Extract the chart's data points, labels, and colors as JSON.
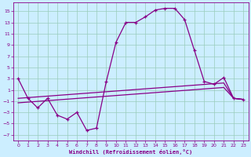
{
  "background_color": "#cceeff",
  "grid_color": "#99ccbb",
  "line_color": "#880088",
  "xlabel": "Windchill (Refroidissement éolien,°C)",
  "xlim": [
    -0.5,
    23.5
  ],
  "ylim": [
    -8.0,
    16.5
  ],
  "yticks": [
    -7,
    -5,
    -3,
    -1,
    1,
    3,
    5,
    7,
    9,
    11,
    13,
    15
  ],
  "xticks": [
    0,
    1,
    2,
    3,
    4,
    5,
    6,
    7,
    8,
    9,
    10,
    11,
    12,
    13,
    14,
    15,
    16,
    17,
    18,
    19,
    20,
    21,
    22,
    23
  ],
  "curve_x": [
    0,
    1,
    2,
    3,
    4,
    5,
    6,
    7,
    8,
    9,
    10,
    11,
    12,
    13,
    14,
    15,
    16,
    17,
    18,
    19,
    20,
    21,
    22,
    23
  ],
  "curve_y": [
    3,
    -0.5,
    -2.2,
    -0.5,
    -3.5,
    -4.2,
    -3.0,
    -6.2,
    -5.8,
    2.5,
    9.5,
    13,
    13,
    14,
    15.2,
    15.5,
    15.5,
    13.5,
    8.0,
    2.5,
    2.0,
    3.2,
    -0.5,
    -0.7
  ],
  "diag1_x": [
    0,
    1,
    2,
    3,
    4,
    5,
    6,
    7,
    8,
    9,
    10,
    11,
    12,
    13,
    14,
    15,
    16,
    17,
    18,
    19,
    20,
    21,
    22,
    23
  ],
  "diag1_y": [
    -0.5,
    -0.37,
    -0.24,
    -0.11,
    0.02,
    0.15,
    0.28,
    0.41,
    0.54,
    0.67,
    0.8,
    0.93,
    1.06,
    1.19,
    1.32,
    1.45,
    1.58,
    1.71,
    1.84,
    1.97,
    2.1,
    2.23,
    -0.5,
    -0.7
  ],
  "diag2_x": [
    0,
    1,
    2,
    3,
    4,
    5,
    6,
    7,
    8,
    9,
    10,
    11,
    12,
    13,
    14,
    15,
    16,
    17,
    18,
    19,
    20,
    21,
    22,
    23
  ],
  "diag2_y": [
    -1.3,
    -1.17,
    -1.04,
    -0.91,
    -0.78,
    -0.65,
    -0.52,
    -0.39,
    -0.26,
    -0.13,
    0.0,
    0.13,
    0.26,
    0.39,
    0.52,
    0.65,
    0.78,
    0.91,
    1.04,
    1.17,
    1.3,
    1.43,
    -0.5,
    -0.7
  ]
}
